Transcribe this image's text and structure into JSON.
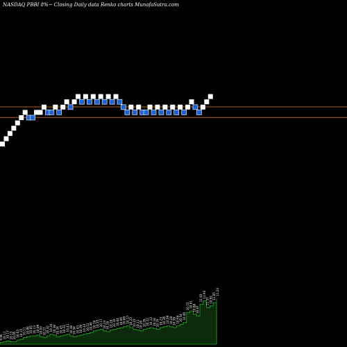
{
  "title": "NASDAQ PBBI 8%~  Closing Daily data  Renko  charts MunafaSutra.com",
  "colors": {
    "background": "#000000",
    "up_brick": "#ffffff",
    "down_brick": "#1e63d6",
    "down_brick_fill": "#ffffff",
    "ref_line": "#b8620f",
    "volume_fill": "#0c2a0c",
    "volume_stroke": "#22b422",
    "volume_label": "#ffffff"
  },
  "chart_data": {
    "type": "renko",
    "bricks": [
      {
        "dir": "up",
        "level": 0
      },
      {
        "dir": "up",
        "level": 1
      },
      {
        "dir": "up",
        "level": 2
      },
      {
        "dir": "up",
        "level": 3
      },
      {
        "dir": "up",
        "level": 4
      },
      {
        "dir": "up",
        "level": 5
      },
      {
        "dir": "up",
        "level": 6
      },
      {
        "dir": "down",
        "level": 5
      },
      {
        "dir": "down",
        "level": 5
      },
      {
        "dir": "up",
        "level": 6
      },
      {
        "dir": "up",
        "level": 6
      },
      {
        "dir": "up",
        "level": 7
      },
      {
        "dir": "down",
        "level": 6
      },
      {
        "dir": "down",
        "level": 6
      },
      {
        "dir": "up",
        "level": 7
      },
      {
        "dir": "down",
        "level": 6
      },
      {
        "dir": "up",
        "level": 7
      },
      {
        "dir": "up",
        "level": 8
      },
      {
        "dir": "down",
        "level": 7
      },
      {
        "dir": "up",
        "level": 8
      },
      {
        "dir": "up",
        "level": 9
      },
      {
        "dir": "down",
        "level": 8
      },
      {
        "dir": "up",
        "level": 9
      },
      {
        "dir": "down",
        "level": 8
      },
      {
        "dir": "up",
        "level": 9
      },
      {
        "dir": "down",
        "level": 8
      },
      {
        "dir": "up",
        "level": 9
      },
      {
        "dir": "down",
        "level": 8
      },
      {
        "dir": "up",
        "level": 9
      },
      {
        "dir": "down",
        "level": 8
      },
      {
        "dir": "up",
        "level": 9
      },
      {
        "dir": "down",
        "level": 8
      },
      {
        "dir": "down",
        "level": 7
      },
      {
        "dir": "down",
        "level": 6
      },
      {
        "dir": "up",
        "level": 7
      },
      {
        "dir": "down",
        "level": 6
      },
      {
        "dir": "up",
        "level": 7
      },
      {
        "dir": "down",
        "level": 6
      },
      {
        "dir": "down",
        "level": 6
      },
      {
        "dir": "up",
        "level": 7
      },
      {
        "dir": "down",
        "level": 6
      },
      {
        "dir": "up",
        "level": 7
      },
      {
        "dir": "down",
        "level": 6
      },
      {
        "dir": "up",
        "level": 7
      },
      {
        "dir": "down",
        "level": 6
      },
      {
        "dir": "up",
        "level": 7
      },
      {
        "dir": "down",
        "level": 6
      },
      {
        "dir": "up",
        "level": 7
      },
      {
        "dir": "down",
        "level": 6
      },
      {
        "dir": "up",
        "level": 7
      },
      {
        "dir": "up",
        "level": 8
      },
      {
        "dir": "down",
        "level": 7
      },
      {
        "dir": "down",
        "level": 6
      },
      {
        "dir": "up",
        "level": 7
      },
      {
        "dir": "up",
        "level": 8
      },
      {
        "dir": "up",
        "level": 9
      }
    ],
    "reference_levels": [
      7.5,
      5.5
    ],
    "volume_labels": [
      "9.96",
      "10.11",
      "10.17",
      "10.13",
      "10.05",
      "10.03",
      "10.15",
      "10.11",
      "10.00",
      "10.05",
      "10.13",
      "10.09",
      "10.03",
      "10.27",
      "10.32",
      "10.34",
      "10.30",
      "10.28",
      "10.45",
      "10.31",
      "10.41",
      "10.38",
      "10.34",
      "10.43",
      "10.39",
      "10.33",
      "10.52",
      "10.46",
      "10.19",
      "10.15",
      "10.17",
      "10.24",
      "10.18",
      "10.20",
      "10.10",
      "10.04",
      "10.06",
      "10.09",
      "10.17",
      "10.23",
      "10.15",
      "10.11",
      "10.20",
      "10.26",
      "10.22",
      "10.12",
      "10.18",
      "10.16",
      "10.23",
      "10.36",
      "10.39",
      "10.28",
      "10.38",
      "10.64",
      "10.54",
      "10.40",
      "10.72",
      "10.61",
      "10.88",
      "10.87",
      "11.93",
      "11.93",
      "11.37",
      "10.91",
      "11.05",
      "11.24"
    ],
    "volume_values": [
      2,
      3,
      4,
      3,
      3,
      5,
      6,
      8,
      9,
      10,
      10,
      11,
      9,
      8,
      10,
      12,
      11,
      9,
      10,
      11,
      12,
      10,
      9,
      10,
      11,
      12,
      13,
      14,
      16,
      17,
      18,
      16,
      15,
      17,
      18,
      19,
      20,
      21,
      22,
      20,
      18,
      17,
      16,
      18,
      19,
      20,
      19,
      18,
      20,
      21,
      22,
      21,
      20,
      22,
      24,
      26,
      38,
      40,
      36,
      34,
      48,
      52,
      44,
      46,
      50,
      55
    ],
    "volume_ymax": 80
  }
}
